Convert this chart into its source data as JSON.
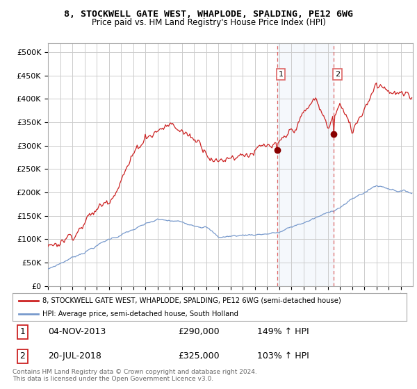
{
  "title": "8, STOCKWELL GATE WEST, WHAPLODE, SPALDING, PE12 6WG",
  "subtitle": "Price paid vs. HM Land Registry's House Price Index (HPI)",
  "background_color": "#ffffff",
  "plot_bg_color": "#ffffff",
  "grid_color": "#cccccc",
  "red_line_color": "#cc2222",
  "blue_line_color": "#7799cc",
  "highlight_bg_color": "#ddeeff",
  "dashed_line_color": "#dd6666",
  "legend_label_red": "8, STOCKWELL GATE WEST, WHAPLODE, SPALDING, PE12 6WG (semi-detached house)",
  "legend_label_blue": "HPI: Average price, semi-detached house, South Holland",
  "transaction1_date": "04-NOV-2013",
  "transaction1_price": 290000,
  "transaction1_hpi": "149% ↑ HPI",
  "transaction2_date": "20-JUL-2018",
  "transaction2_price": 325000,
  "transaction2_hpi": "103% ↑ HPI",
  "footer": "Contains HM Land Registry data © Crown copyright and database right 2024.\nThis data is licensed under the Open Government Licence v3.0.",
  "ylim_max": 520000,
  "ylim_min": 0
}
